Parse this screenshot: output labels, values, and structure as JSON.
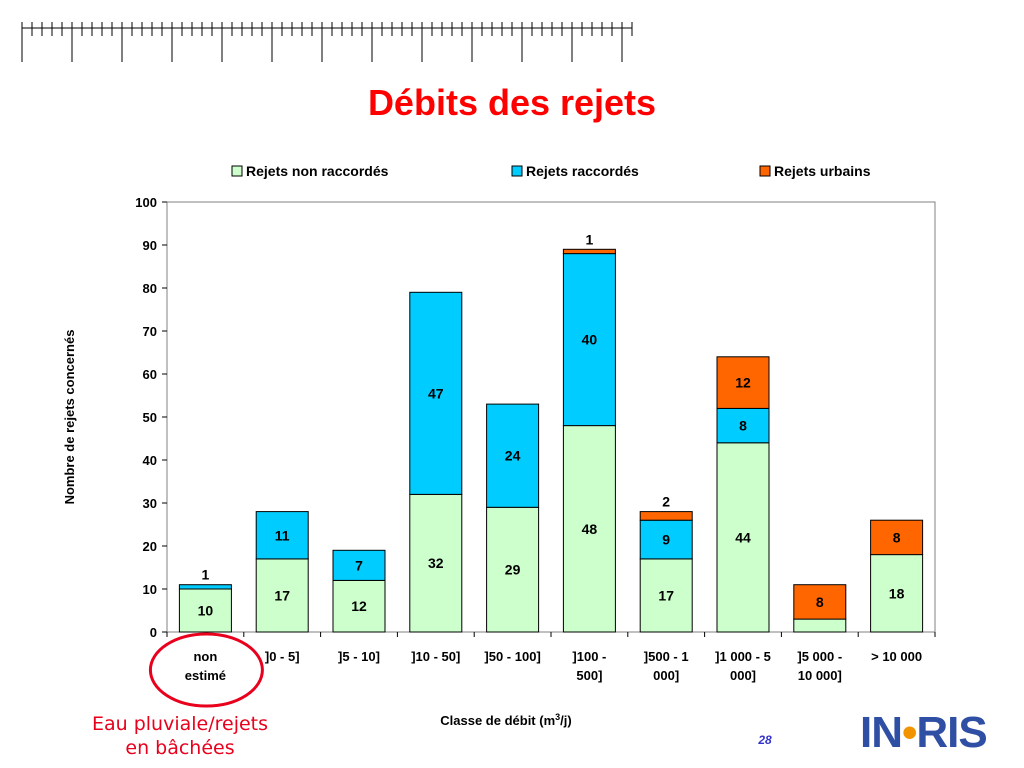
{
  "slide": {
    "title": "Débits des rejets",
    "page_number": "28",
    "annotation": "Eau pluviale/rejets en bâchées",
    "logo": {
      "prefix": "IN",
      "dot_color": "#f29400",
      "suffix": "RIS",
      "color": "#2e4fa3"
    }
  },
  "colors": {
    "title": "#ff0000",
    "annotation_circle": "#e8001c",
    "annotation_text": "#e8001c",
    "page_number": "#3333cc"
  },
  "chart_data": {
    "type": "bar",
    "stacked": true,
    "xlabel_parts": {
      "base": "Classe de débit (m",
      "sup": "3",
      "tail": "/j)"
    },
    "ylabel": "Nombre de rejets concernés",
    "ylim": [
      0,
      100
    ],
    "yticks": [
      0,
      10,
      20,
      30,
      40,
      50,
      60,
      70,
      80,
      90,
      100
    ],
    "grid": false,
    "legend_position": "top",
    "categories": [
      [
        "non",
        "estimé"
      ],
      [
        "]0 - 5]"
      ],
      [
        "]5 - 10]"
      ],
      [
        "]10 - 50]"
      ],
      [
        "]50 - 100]"
      ],
      [
        "]100 -",
        "500]"
      ],
      [
        "]500 - 1",
        "000]"
      ],
      [
        "]1 000 - 5",
        "000]"
      ],
      [
        "]5 000 -",
        "10 000]"
      ],
      [
        "> 10 000"
      ]
    ],
    "series": [
      {
        "name": "Rejets non raccordés",
        "color": "#ccffcc",
        "values": [
          10,
          17,
          12,
          32,
          29,
          48,
          17,
          44,
          3,
          18
        ]
      },
      {
        "name": "Rejets raccordés",
        "color": "#00ccff",
        "values": [
          1,
          11,
          7,
          47,
          24,
          40,
          9,
          8,
          0,
          0
        ]
      },
      {
        "name": "Rejets urbains",
        "color": "#ff6600",
        "values": [
          0,
          0,
          0,
          0,
          0,
          1,
          2,
          12,
          8,
          8
        ]
      }
    ]
  }
}
